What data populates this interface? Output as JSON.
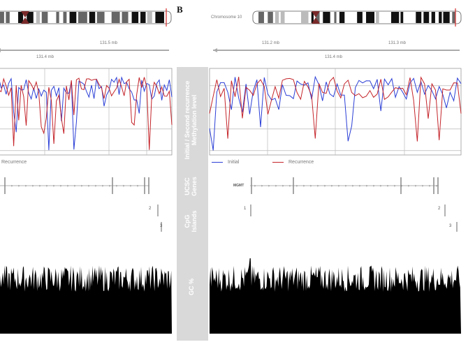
{
  "panel_letter": "B",
  "chromosome_label": "Chromosome 10",
  "tracks": {
    "methylation": "Initial / Second recurrence\nMethylation level",
    "genes": "UCSC\nGenes",
    "cpg": "CpG\nIslands",
    "gc": "GC %"
  },
  "legend": {
    "initial": "Initial",
    "recurrence": "Recurrence"
  },
  "gene_name": "MGMT",
  "cpg_labels": [
    "1",
    "2",
    "3"
  ],
  "scale_left": {
    "top": "131.5 mb",
    "bottom": "131.4 mb"
  },
  "scale_right": {
    "top_a": "131.2 mb",
    "top_b": "131.3 mb",
    "bottom": "131.4 mb"
  },
  "methylation_ticks": [
    "1.0",
    "0.8",
    "0.6",
    "0.4",
    "0.2"
  ],
  "gc_ticks": [
    "100",
    "80",
    "60",
    "40",
    "20",
    "0"
  ],
  "colors": {
    "initial": "#2b3fd6",
    "recurrence": "#c4242a",
    "band_marker": "#d62b2b",
    "label_panel": "#d9d9d9"
  }
}
